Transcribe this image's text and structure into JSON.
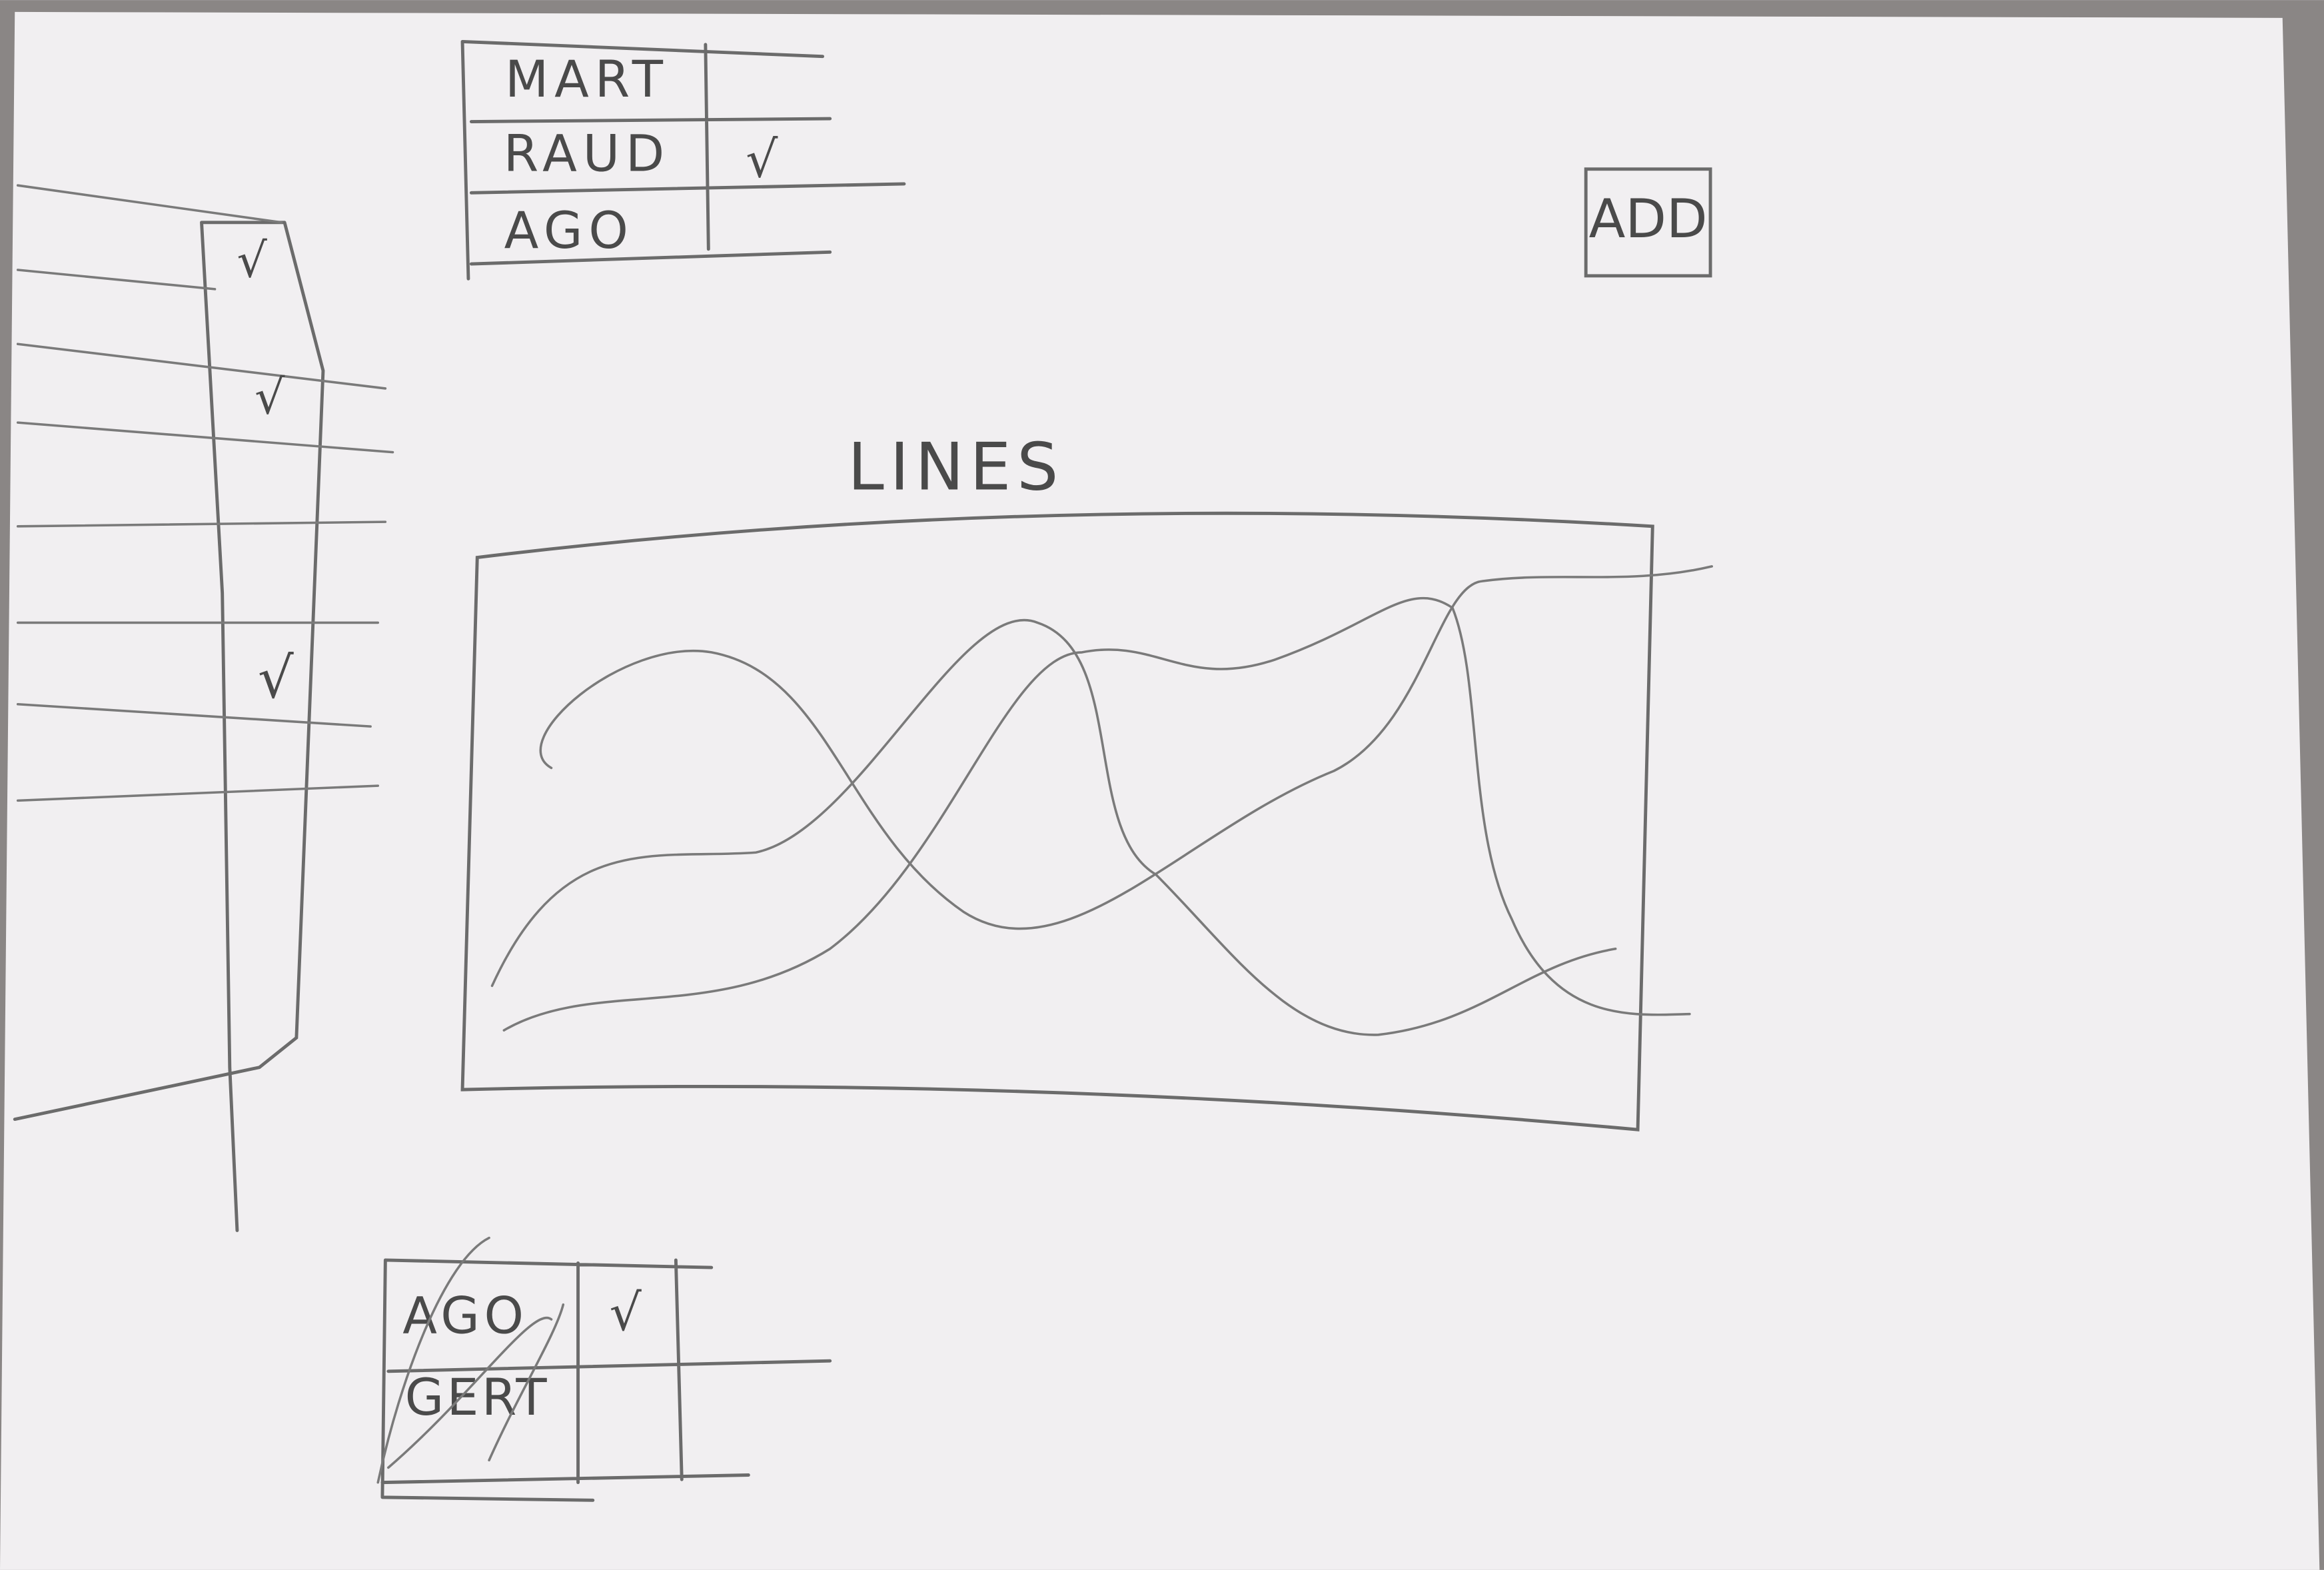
{
  "top_table": {
    "rows": [
      {
        "name": "MART"
      },
      {
        "name": "RAUD",
        "check": "√"
      },
      {
        "name": "AGO"
      }
    ]
  },
  "add_button": "ADD",
  "chart": {
    "title": "LINES"
  },
  "side_table": {
    "checks": [
      "√",
      "√",
      "√"
    ]
  },
  "bottom_table": {
    "rows": [
      {
        "name": "AGO",
        "check": "√"
      },
      {
        "name": "GERT"
      }
    ]
  }
}
